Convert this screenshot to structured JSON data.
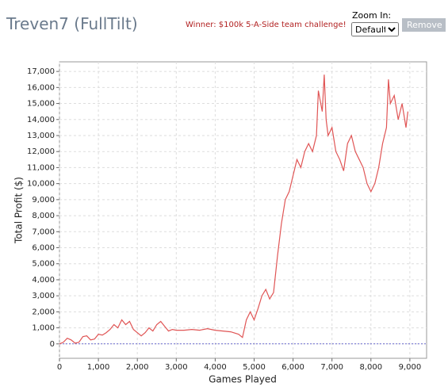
{
  "header": {
    "title": "Treven7 (FullTilt)",
    "winner": "Winner: $100k 5-A-Side team challenge!"
  },
  "zoom": {
    "label": "Zoom In:",
    "select": "Default",
    "button": "Remove"
  },
  "chart_data": {
    "type": "line",
    "xlabel": "Games Played",
    "ylabel": "Total Profit ($)",
    "color": "#e05555",
    "grid": true,
    "zero_line_color": "#6a6ad0",
    "xlim": [
      0,
      9430
    ],
    "ylim": [
      -900,
      17600
    ],
    "xticks": [
      0,
      {
        "value": 1000,
        "label": "1,000"
      },
      {
        "value": 2000,
        "label": "2,000"
      },
      {
        "value": 3000,
        "label": "3,000"
      },
      {
        "value": 4000,
        "label": "4,000"
      },
      {
        "value": 5000,
        "label": "5,000"
      },
      {
        "value": 6000,
        "label": "6,000"
      },
      {
        "value": 7000,
        "label": "7,000"
      },
      {
        "value": 8000,
        "label": "8,000"
      },
      {
        "value": 9000,
        "label": "9,000"
      }
    ],
    "yticks": [
      0,
      {
        "value": 1000,
        "label": "1,000"
      },
      {
        "value": 2000,
        "label": "2,000"
      },
      {
        "value": 3000,
        "label": "3,000"
      },
      {
        "value": 4000,
        "label": "4,000"
      },
      {
        "value": 5000,
        "label": "5,000"
      },
      {
        "value": 6000,
        "label": "6,000"
      },
      {
        "value": 7000,
        "label": "7,000"
      },
      {
        "value": 8000,
        "label": "8,000"
      },
      {
        "value": 9000,
        "label": "9,000"
      },
      {
        "value": 10000,
        "label": "10,000"
      },
      {
        "value": 11000,
        "label": "11,000"
      },
      {
        "value": 12000,
        "label": "12,000"
      },
      {
        "value": 13000,
        "label": "13,000"
      },
      {
        "value": 14000,
        "label": "14,000"
      },
      {
        "value": 15000,
        "label": "15,000"
      },
      {
        "value": 16000,
        "label": "16,000"
      },
      {
        "value": 17000,
        "label": "17,000"
      }
    ],
    "x": [
      0,
      100,
      200,
      300,
      400,
      500,
      600,
      700,
      800,
      900,
      1000,
      1100,
      1200,
      1300,
      1400,
      1500,
      1600,
      1700,
      1800,
      1900,
      2000,
      2100,
      2200,
      2300,
      2400,
      2500,
      2600,
      2700,
      2800,
      2900,
      3000,
      3200,
      3400,
      3600,
      3800,
      4000,
      4200,
      4400,
      4600,
      4700,
      4800,
      4900,
      5000,
      5100,
      5200,
      5300,
      5400,
      5500,
      5600,
      5700,
      5800,
      5900,
      6000,
      6100,
      6200,
      6300,
      6400,
      6500,
      6600,
      6650,
      6750,
      6800,
      6850,
      6900,
      7000,
      7100,
      7200,
      7300,
      7400,
      7500,
      7600,
      7700,
      7800,
      7900,
      8000,
      8100,
      8200,
      8300,
      8400,
      8450,
      8500,
      8600,
      8700,
      8800,
      8900,
      8950
    ],
    "values": [
      0,
      100,
      350,
      250,
      50,
      100,
      450,
      500,
      250,
      300,
      600,
      550,
      700,
      900,
      1200,
      1000,
      1500,
      1200,
      1400,
      900,
      700,
      500,
      700,
      1000,
      800,
      1200,
      1400,
      1100,
      800,
      900,
      850,
      850,
      900,
      850,
      950,
      850,
      800,
      750,
      600,
      400,
      1500,
      2000,
      1500,
      2200,
      3000,
      3400,
      2800,
      3200,
      5500,
      7500,
      9000,
      9500,
      10500,
      11500,
      11000,
      12000,
      12500,
      12000,
      13000,
      15800,
      14500,
      16800,
      14000,
      13000,
      13500,
      12000,
      11500,
      10800,
      12500,
      13000,
      12000,
      11500,
      11000,
      10000,
      9500,
      10000,
      11000,
      12500,
      13500,
      16500,
      15000,
      15500,
      14000,
      15000,
      13500,
      14500
    ]
  }
}
